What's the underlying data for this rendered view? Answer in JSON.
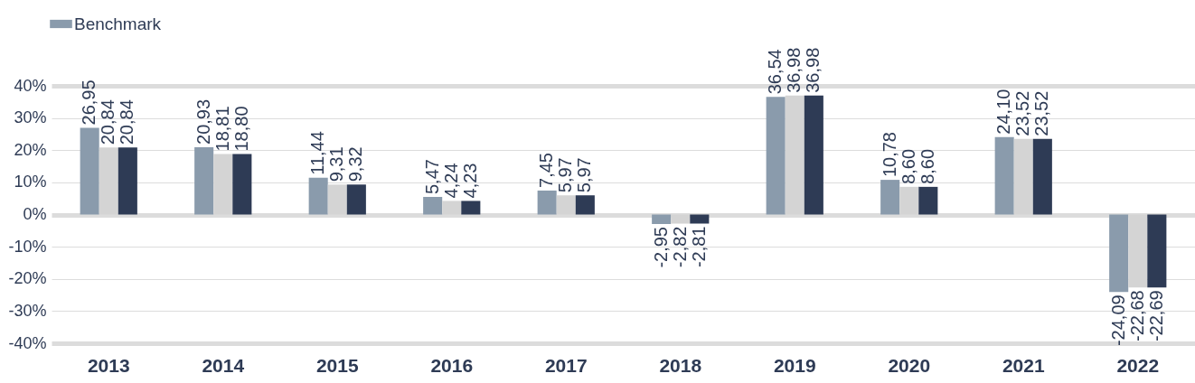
{
  "chart_data": {
    "type": "bar",
    "categories": [
      "2013",
      "2014",
      "2015",
      "2016",
      "2017",
      "2018",
      "2019",
      "2020",
      "2021",
      "2022"
    ],
    "series": [
      {
        "name": "Benchmark",
        "color": "#8a9bac",
        "values": [
          26.95,
          20.93,
          11.44,
          5.47,
          7.45,
          -2.95,
          36.54,
          10.78,
          24.1,
          -24.09
        ],
        "value_labels": [
          "26,95",
          "20,93",
          "11,44",
          "5,47",
          "7,45",
          "-2,95",
          "36,54",
          "10,78",
          "24,10",
          "-24,09"
        ]
      },
      {
        "color": "#d4d4d4",
        "values": [
          20.84,
          18.81,
          9.31,
          4.24,
          5.97,
          -2.82,
          36.98,
          8.6,
          23.52,
          -22.68
        ],
        "value_labels": [
          "20,84",
          "18,81",
          "9,31",
          "4,24",
          "5,97",
          "-2,82",
          "36,98",
          "8,60",
          "23,52",
          "-22,68"
        ]
      },
      {
        "color": "#2e3b55",
        "values": [
          20.84,
          18.8,
          9.32,
          4.23,
          5.97,
          -2.81,
          36.98,
          8.6,
          23.52,
          -22.69
        ],
        "value_labels": [
          "20,84",
          "18,80",
          "9,32",
          "4,23",
          "5,97",
          "-2,81",
          "36,98",
          "8,60",
          "23,52",
          "-22,69"
        ]
      }
    ],
    "ylim": [
      -40,
      40
    ],
    "yticks": [
      {
        "value": -40,
        "label": "-40%"
      },
      {
        "value": -30,
        "label": "-30%"
      },
      {
        "value": -20,
        "label": "-20%"
      },
      {
        "value": -10,
        "label": "-10%"
      },
      {
        "value": 0,
        "label": "0%"
      },
      {
        "value": 10,
        "label": "10%"
      },
      {
        "value": 20,
        "label": "20%"
      },
      {
        "value": 30,
        "label": "30%"
      },
      {
        "value": 40,
        "label": "40%"
      }
    ],
    "grid": "y",
    "legend": "top"
  }
}
